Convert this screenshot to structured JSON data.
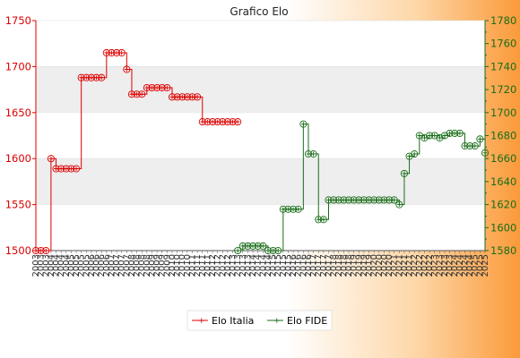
{
  "chart_data": {
    "type": "line",
    "title": "Grafico Elo",
    "legend_position": "bottom",
    "grid": true,
    "y_left": {
      "ylim": [
        1500,
        1750
      ],
      "ticks": [
        1500,
        1550,
        1600,
        1650,
        1700,
        1750
      ]
    },
    "y_right": {
      "ylim": [
        1580,
        1780
      ],
      "ticks": [
        1580,
        1600,
        1620,
        1640,
        1660,
        1680,
        1700,
        1720,
        1740,
        1760,
        1780
      ]
    },
    "x_count": 90,
    "x_labels": [
      "2003",
      "2003",
      "2003",
      "2004",
      "2004",
      "2004",
      "2004",
      "2005",
      "2005",
      "2005",
      "2005",
      "2006",
      "2006",
      "2006",
      "2006",
      "2007",
      "2007",
      "2007",
      "2007",
      "2008",
      "2008",
      "2008",
      "2008",
      "2009",
      "2009",
      "2009",
      "2009",
      "2010",
      "2010",
      "2010",
      "2010",
      "2011",
      "2011",
      "2011",
      "2011",
      "2012",
      "2012",
      "2012",
      "2012",
      "2013",
      "2013",
      "2013",
      "2013",
      "2014",
      "2014",
      "2014",
      "2014",
      "2015",
      "2015",
      "2015",
      "2015",
      "2016",
      "2016",
      "2016",
      "2016",
      "2017",
      "2017",
      "2017",
      "2017",
      "2018",
      "2018",
      "2018",
      "2018",
      "2019",
      "2019",
      "2019",
      "2019",
      "2020",
      "2020",
      "2020",
      "2020",
      "2021",
      "2021",
      "2021",
      "2021",
      "2022",
      "2022",
      "2022",
      "2022",
      "2023",
      "2023",
      "2023",
      "2023",
      "2024",
      "2024",
      "2024",
      "2024",
      "2025",
      "2025",
      "2025"
    ],
    "series": [
      {
        "name": "Elo Italia",
        "axis": "left",
        "color": "#dd0000",
        "x": [
          0,
          1,
          2,
          3,
          4,
          5,
          6,
          7,
          8,
          9,
          10,
          11,
          12,
          13,
          14,
          15,
          16,
          17,
          18,
          19,
          20,
          21,
          22,
          23,
          24,
          25,
          26,
          27,
          28,
          29,
          30,
          31,
          32,
          33,
          34,
          35,
          36,
          37,
          38,
          39,
          40
        ],
        "values": [
          1500,
          1500,
          1500,
          1600,
          1589,
          1589,
          1589,
          1589,
          1589,
          1688,
          1688,
          1688,
          1688,
          1688,
          1715,
          1715,
          1715,
          1715,
          1697,
          1670,
          1670,
          1670,
          1677,
          1677,
          1677,
          1677,
          1677,
          1667,
          1667,
          1667,
          1667,
          1667,
          1667,
          1640,
          1640,
          1640,
          1640,
          1640,
          1640,
          1640,
          1640
        ]
      },
      {
        "name": "Elo FIDE",
        "axis": "right",
        "color": "#1a6e1a",
        "x": [
          40,
          41,
          42,
          43,
          44,
          45,
          46,
          47,
          48,
          49,
          50,
          51,
          52,
          53,
          54,
          55,
          56,
          57,
          58,
          59,
          60,
          61,
          62,
          63,
          64,
          65,
          66,
          67,
          68,
          69,
          70,
          71,
          72,
          73,
          74,
          75,
          76,
          77,
          78,
          79,
          80,
          81,
          82,
          83,
          84,
          85,
          86,
          87,
          88,
          89
        ],
        "values": [
          1580,
          1584,
          1584,
          1584,
          1584,
          1584,
          1580,
          1580,
          1580,
          1616,
          1616,
          1616,
          1616,
          1690,
          1664,
          1664,
          1607,
          1607,
          1624,
          1624,
          1624,
          1624,
          1624,
          1624,
          1624,
          1624,
          1624,
          1624,
          1624,
          1624,
          1624,
          1624,
          1620,
          1647,
          1662,
          1664,
          1680,
          1678,
          1680,
          1680,
          1678,
          1680,
          1682,
          1682,
          1682,
          1671,
          1671,
          1671,
          1677,
          1665
        ]
      }
    ]
  },
  "legend": [
    "Elo Italia",
    "Elo FIDE"
  ]
}
